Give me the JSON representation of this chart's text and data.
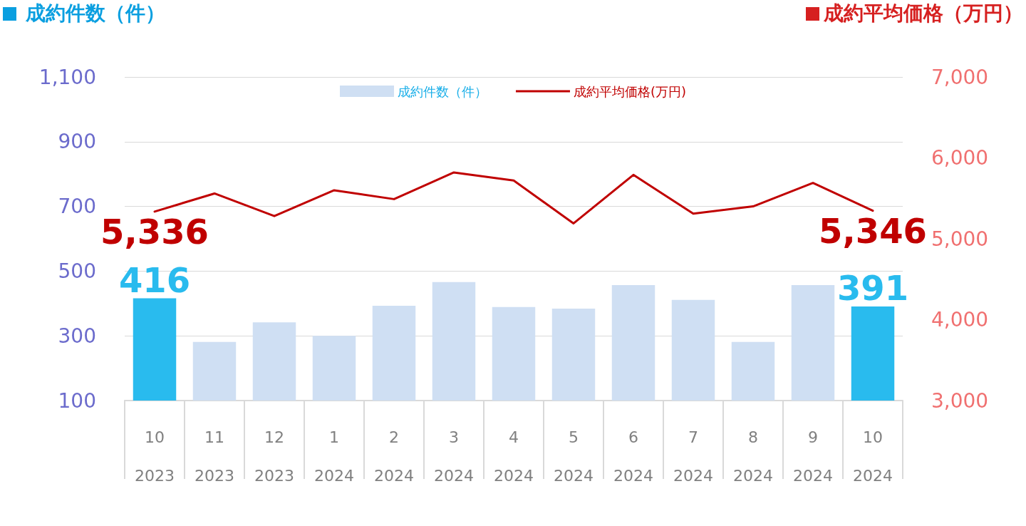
{
  "chart_data": {
    "type": "bar",
    "ylabel": "成約件数（件）",
    "y2label": "成約平均価格（万円）",
    "categories": [
      "10\n2023",
      "11\n2023",
      "12\n2023",
      "1\n2024",
      "2\n2024",
      "3\n2024",
      "4\n2024",
      "5\n2024",
      "6\n2024",
      "7\n2024",
      "8\n2024",
      "9\n2024",
      "10\n2024"
    ],
    "series": [
      {
        "name": "成約件数（件）",
        "color": "#cfdff3",
        "colors": [
          "#29bbee",
          "#cfdff3",
          "#cfdff3",
          "#cfdff3",
          "#cfdff3",
          "#cfdff3",
          "#cfdff3",
          "#cfdff3",
          "#cfdff3",
          "#cfdff3",
          "#cfdff3",
          "#cfdff3",
          "#29bbee"
        ],
        "values": [
          416,
          281,
          342,
          300,
          393,
          466,
          389,
          384,
          457,
          411,
          281,
          457,
          391
        ],
        "value_labels": [
          "416",
          null,
          null,
          null,
          null,
          null,
          null,
          null,
          null,
          null,
          null,
          null,
          "391"
        ]
      },
      {
        "name": "成約平均価格(万円)",
        "type": "line",
        "axis": "y2",
        "color": "#c00000",
        "values": [
          5336,
          5560,
          5280,
          5600,
          5490,
          5820,
          5720,
          5190,
          5790,
          5310,
          5400,
          5690,
          5346
        ],
        "value_labels": [
          "5,336",
          null,
          null,
          null,
          null,
          null,
          null,
          null,
          null,
          null,
          null,
          null,
          "5,346"
        ]
      }
    ],
    "ylim": [
      100,
      1100
    ],
    "yticks": [
      100,
      300,
      500,
      700,
      900,
      {
        "value": 1100,
        "label": "1,100"
      }
    ],
    "y2lim": [
      3000,
      7000
    ],
    "y2ticks": [
      {
        "value": 3000,
        "label": "3,000"
      },
      {
        "value": 4000,
        "label": "4,000"
      },
      {
        "value": 5000,
        "label": "5,000"
      },
      {
        "value": 6000,
        "label": "6,000"
      },
      {
        "value": 7000,
        "label": "7,000"
      }
    ],
    "grid": "y",
    "legend": "top",
    "marker": "none",
    "line_style": "solid"
  }
}
